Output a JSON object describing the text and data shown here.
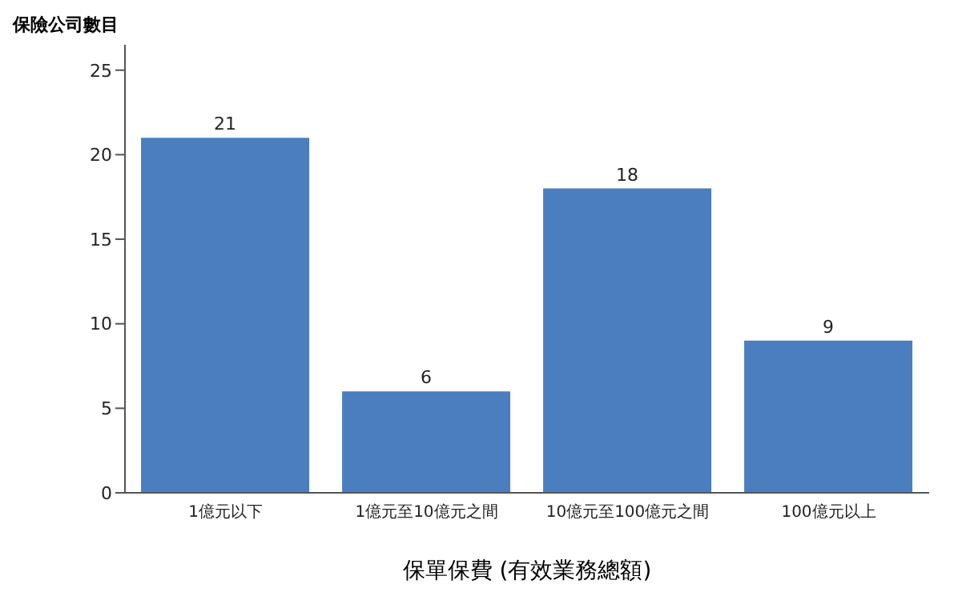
{
  "chart_data": {
    "type": "bar",
    "ylabel": "保險公司數目",
    "xlabel": "保單保費 (有效業務總額)",
    "categories": [
      "1億元以下",
      "1億元至10億元之間",
      "10億元至100億元之間",
      "100億元以上"
    ],
    "values": [
      21,
      6,
      18,
      9
    ],
    "color": "#4a7ebf",
    "data_labels": true,
    "ylim": [
      0,
      26.5
    ],
    "yticks": [
      0,
      5,
      10,
      15,
      20,
      25
    ],
    "grid": false,
    "legend": false
  }
}
